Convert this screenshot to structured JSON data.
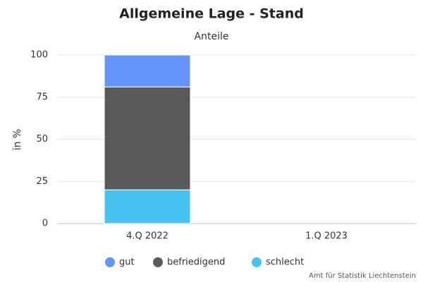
{
  "chart_data": {
    "type": "stacked-bar",
    "title": "Allgemeine Lage - Stand",
    "subtitle": "Anteile",
    "y_label": "in %",
    "categories": [
      "4.Q 2022",
      "1.Q 2023"
    ],
    "series": [
      {
        "name": "gut",
        "color": "#6495ff",
        "values": [
          19,
          null
        ]
      },
      {
        "name": "befriedigend",
        "color": "#595959",
        "values": [
          61,
          null
        ]
      },
      {
        "name": "schlecht",
        "color": "#47c1ef",
        "values": [
          20,
          null
        ]
      }
    ],
    "ylim": [
      0,
      100
    ],
    "yticks": [
      0,
      25,
      50,
      75,
      100
    ],
    "grid": true,
    "credit": "Amt für Statistik Liechtenstein"
  }
}
